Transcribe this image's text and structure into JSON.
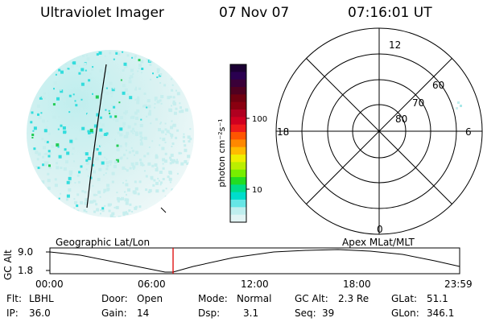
{
  "header": {
    "instrument": "Ultraviolet Imager",
    "date": "07 Nov 07",
    "time": "07:16:01 UT"
  },
  "colorbar": {
    "unit_label": "photon cm⁻²s⁻¹",
    "ticks": [
      "100",
      "10"
    ],
    "colors": [
      "#1b0033",
      "#2a0050",
      "#3a0038",
      "#500020",
      "#700010",
      "#8a0010",
      "#b00020",
      "#d00020",
      "#ee1a1a",
      "#ff5500",
      "#ff8800",
      "#ffbb00",
      "#eeee00",
      "#bbee00",
      "#77ee00",
      "#22dd22",
      "#00dd88",
      "#00ddcc",
      "#66e6e6",
      "#bfeeee",
      "#e2f4f4"
    ]
  },
  "polar_grid": {
    "mlt_labels": {
      "top": "12",
      "left": "18",
      "right": "6",
      "bottom": "0"
    },
    "lat_labels": [
      "60",
      "70",
      "80"
    ]
  },
  "altitude_plot": {
    "left_title": "Geographic Lat/Lon",
    "right_title": "Apex MLat/MLT",
    "ylabel": "GC Alt",
    "yticks": [
      "9.0",
      "1.8"
    ],
    "xticks": [
      "00:00",
      "06:00",
      "12:00",
      "18:00",
      "23:59"
    ]
  },
  "status": {
    "row1": {
      "flt_label": "Flt:",
      "flt_value": "LBHL",
      "door_label": "Door:",
      "door_value": "Open",
      "mode_label": "Mode:",
      "mode_value": "Normal",
      "gcalt_label": "GC Alt:",
      "gcalt_value": "2.3 Re",
      "glat_label": "GLat:",
      "glat_value": "51.1"
    },
    "row2": {
      "ip_label": "IP:",
      "ip_value": "36.0",
      "gain_label": "Gain:",
      "gain_value": "14",
      "dsp_label": "Dsp:",
      "dsp_value": "3.1",
      "seq_label": "Seq:",
      "seq_value": "39",
      "glon_label": "GLon:",
      "glon_value": "346.1"
    }
  },
  "colors": {
    "marker": "#dd0000",
    "speckle_cyan": "#33dddd",
    "speckle_green": "#22cc55",
    "speckle_light": "#c6eeee"
  }
}
